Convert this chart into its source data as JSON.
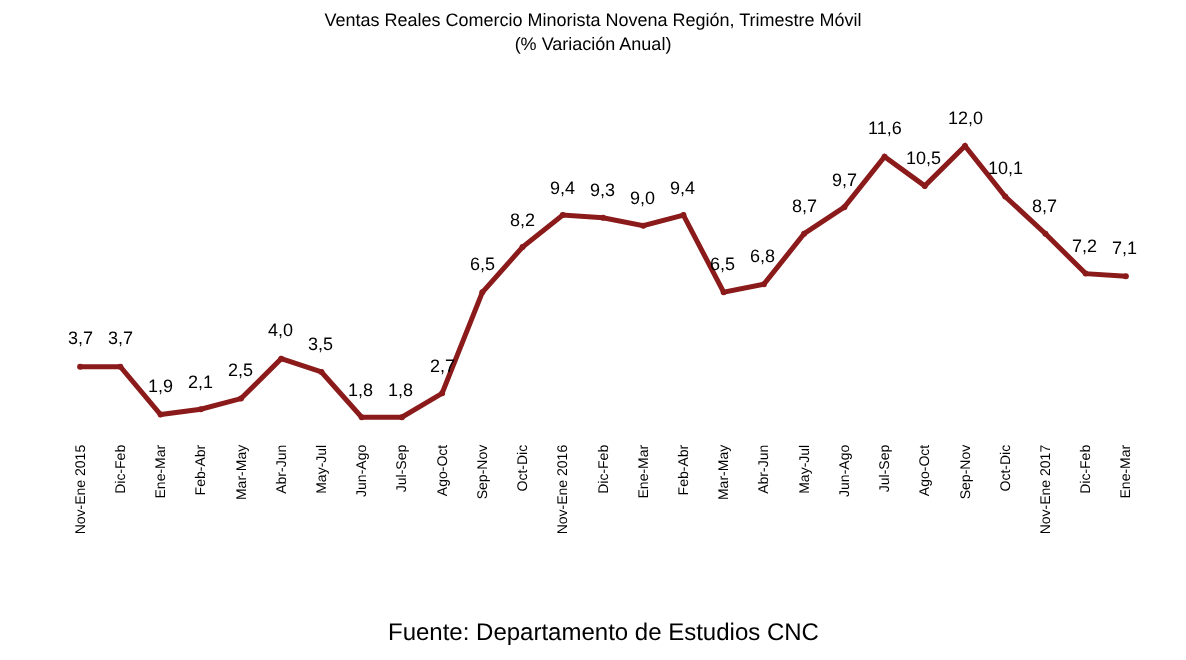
{
  "chart_data": {
    "type": "line",
    "title": "Ventas Reales Comercio Minorista Novena Región, Trimestre Móvil\n(% Variación Anual)",
    "categories": [
      "Nov-Ene 2015",
      "Dic-Feb",
      "Ene-Mar",
      "Feb-Abr",
      "Mar-May",
      "Abr-Jun",
      "May-Jul",
      "Jun-Ago",
      "Jul-Sep",
      "Ago-Oct",
      "Sep-Nov",
      "Oct-Dic",
      "Nov-Ene 2016",
      "Dic-Feb",
      "Ene-Mar",
      "Feb-Abr",
      "Mar-May",
      "Abr-Jun",
      "May-Jul",
      "Jun-Ago",
      "Jul-Sep",
      "Ago-Oct",
      "Sep-Nov",
      "Oct-Dic",
      "Nov-Ene 2017",
      "Dic-Feb",
      "Ene-Mar"
    ],
    "series": [
      {
        "color": "#8b1a1a",
        "values": [
          3.7,
          3.7,
          1.9,
          2.1,
          2.5,
          4.0,
          3.5,
          1.8,
          1.8,
          2.7,
          6.5,
          8.2,
          9.4,
          9.3,
          9.0,
          9.4,
          6.5,
          6.8,
          8.7,
          9.7,
          11.6,
          10.5,
          12.0,
          10.1,
          8.7,
          7.2,
          7.1
        ],
        "value_labels": [
          "3,7",
          "3,7",
          "1,9",
          "2,1",
          "2,5",
          "4,0",
          "3,5",
          "1,8",
          "1,8",
          "2,7",
          "6,5",
          "8,2",
          "9,4",
          "9,3",
          "9,0",
          "9,4",
          "6,5",
          "6,8",
          "8,7",
          "9,7",
          "11,6",
          "10,5",
          "12,0",
          "10,1",
          "8,7",
          "7,2",
          "7,1"
        ]
      }
    ],
    "marker": "circle",
    "grid": false,
    "annotations": [
      "Fuente: Departamento de Estudios CNC"
    ]
  }
}
